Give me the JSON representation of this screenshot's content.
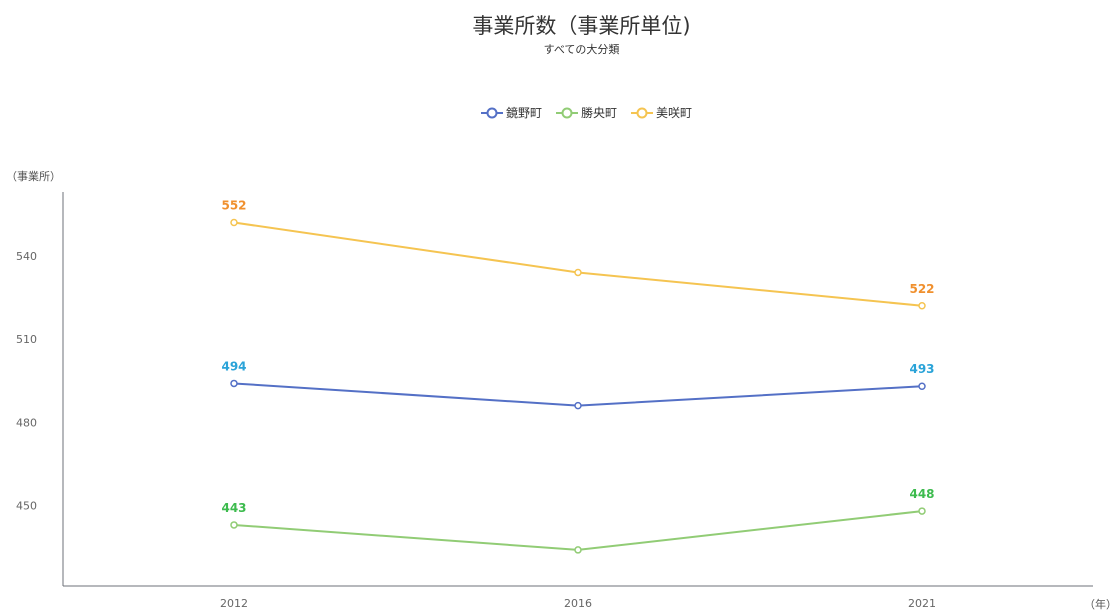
{
  "chart_data": {
    "type": "line",
    "title": "事業所数（事業所単位)",
    "subtitle": "すべての大分類",
    "ylabel": "（事業所）",
    "xlabel": "（年）",
    "categories": [
      "2012",
      "2016",
      "2021"
    ],
    "ylim": [
      421,
      563
    ],
    "yticks": [
      450,
      480,
      510,
      540
    ],
    "grid": false,
    "legend_position": "top-center",
    "series": [
      {
        "name": "鏡野町",
        "values": [
          494,
          486,
          493
        ],
        "color": "#5470c6",
        "label_color": "#2aa3d8",
        "labels": [
          "494",
          "",
          "493"
        ]
      },
      {
        "name": "勝央町",
        "values": [
          443,
          434,
          448
        ],
        "color": "#91cc75",
        "label_color": "#3dbb4e",
        "labels": [
          "443",
          "",
          "448"
        ]
      },
      {
        "name": "美咲町",
        "values": [
          552,
          534,
          522
        ],
        "color": "#f5c451",
        "label_color": "#f0902e",
        "labels": [
          "552",
          "",
          "522"
        ]
      }
    ]
  }
}
